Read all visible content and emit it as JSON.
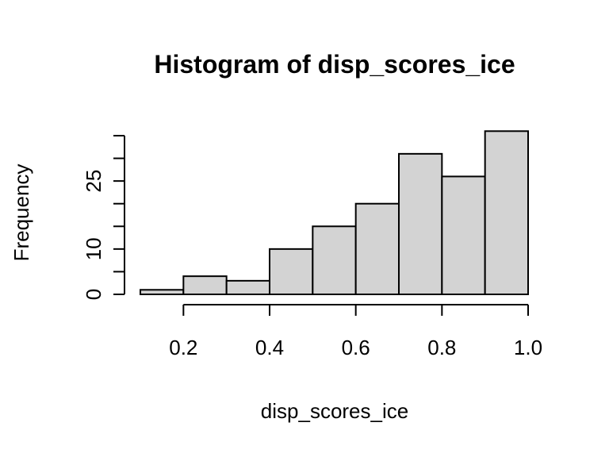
{
  "chart_data": {
    "type": "bar",
    "title": "Histogram of disp_scores_ice",
    "xlabel": "disp_scores_ice",
    "ylabel": "Frequency",
    "bin_edges": [
      0.1,
      0.2,
      0.3,
      0.4,
      0.5,
      0.6,
      0.7,
      0.8,
      0.9,
      1.0
    ],
    "values": [
      1,
      4,
      3,
      10,
      15,
      20,
      31,
      26,
      36
    ],
    "xlim": [
      0.1,
      1.0
    ],
    "ylim": [
      0,
      35
    ],
    "x_ticks": [
      0.2,
      0.4,
      0.6,
      0.8,
      1.0
    ],
    "x_tick_labels": [
      "0.2",
      "0.4",
      "0.6",
      "0.8",
      "1.0"
    ],
    "y_ticks": [
      0,
      5,
      10,
      15,
      20,
      25,
      30,
      35
    ],
    "y_tick_labels": [
      "0",
      "",
      "10",
      "",
      "",
      "25",
      "",
      ""
    ],
    "bar_color": "#d3d3d3",
    "grid": false
  }
}
